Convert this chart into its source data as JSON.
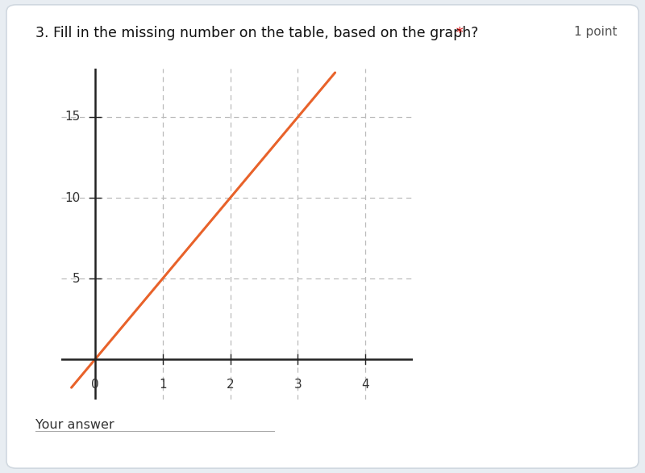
{
  "title": "3. Fill in the missing number on the table, based on the graph?",
  "points_text": "1 point",
  "outer_bg": "#e8edf2",
  "card_bg": "#ffffff",
  "card_edge": "#d0d8e0",
  "line_color": "#e8622a",
  "line_width": 2.2,
  "xlim": [
    -0.5,
    4.7
  ],
  "ylim": [
    -2.5,
    18
  ],
  "xticks": [
    0,
    1,
    2,
    3,
    4
  ],
  "yticks": [
    5,
    10,
    15
  ],
  "grid_color": "#bbbbbb",
  "axis_color": "#222222",
  "your_answer_text": "Your answer"
}
